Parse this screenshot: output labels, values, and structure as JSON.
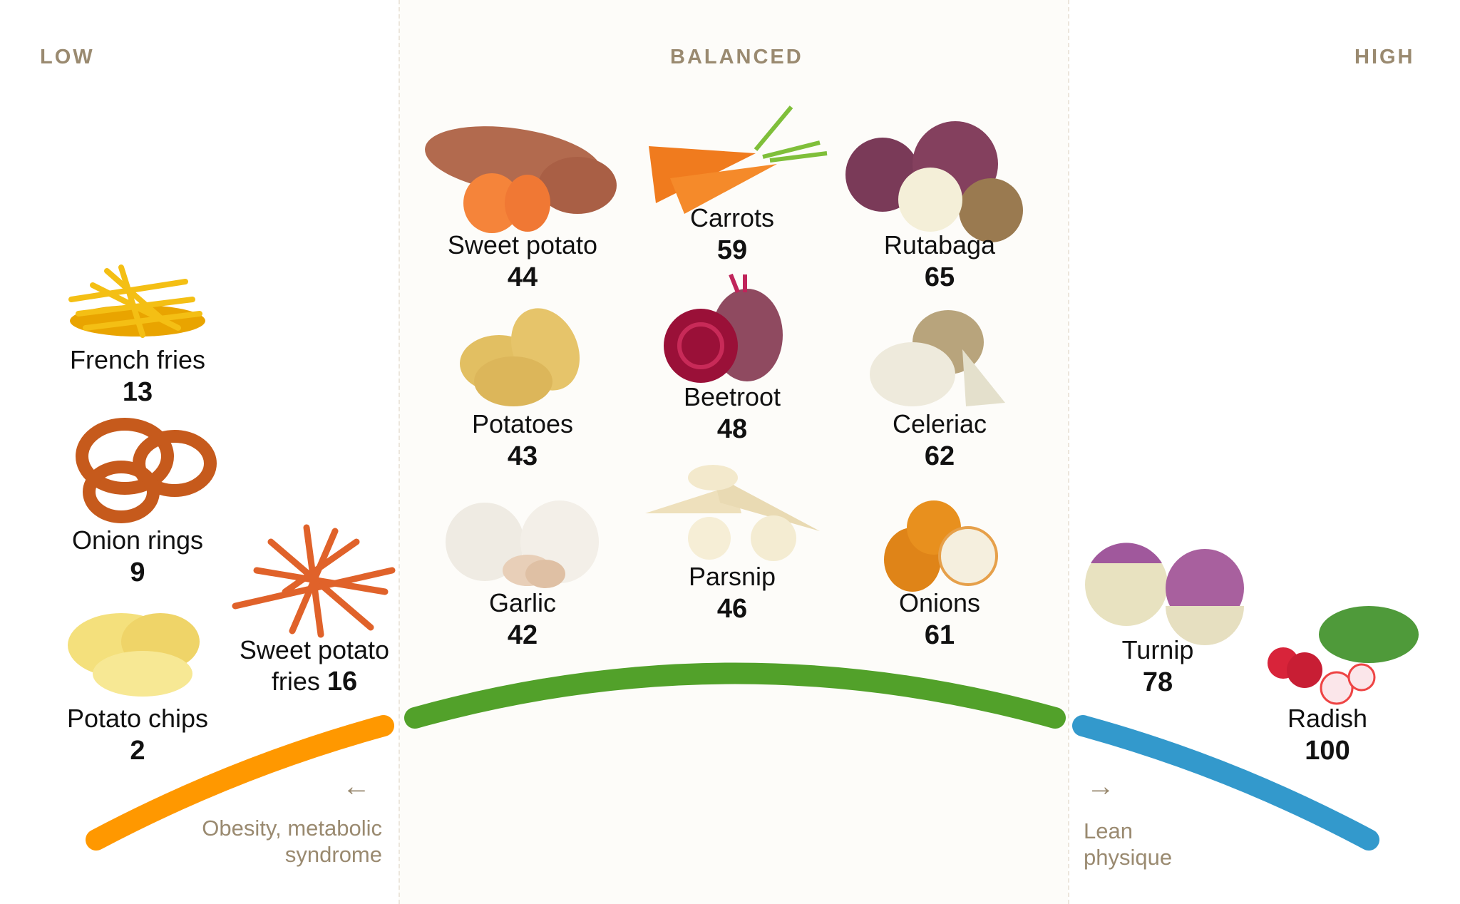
{
  "zones": {
    "low": "LOW",
    "balanced": "BALANCED",
    "high": "HIGH"
  },
  "colors": {
    "low": "#ff9800",
    "balanced": "#52a12a",
    "high": "#3399cc",
    "muted_text": "#9a8a70"
  },
  "items": {
    "french_fries": {
      "label": "French fries",
      "value": "13"
    },
    "onion_rings": {
      "label": "Onion rings",
      "value": "9"
    },
    "potato_chips": {
      "label": "Potato chips",
      "value": "2"
    },
    "sweet_potato_fries": {
      "label": "Sweet potato",
      "label2": "fries",
      "value": "16"
    },
    "sweet_potato": {
      "label": "Sweet potato",
      "value": "44"
    },
    "potatoes": {
      "label": "Potatoes",
      "value": "43"
    },
    "garlic": {
      "label": "Garlic",
      "value": "42"
    },
    "carrots": {
      "label": "Carrots",
      "value": "59"
    },
    "beetroot": {
      "label": "Beetroot",
      "value": "48"
    },
    "parsnip": {
      "label": "Parsnip",
      "value": "46"
    },
    "rutabaga": {
      "label": "Rutabaga",
      "value": "65"
    },
    "celeriac": {
      "label": "Celeriac",
      "value": "62"
    },
    "onions": {
      "label": "Onions",
      "value": "61"
    },
    "turnip": {
      "label": "Turnip",
      "value": "78"
    },
    "radish": {
      "label": "Radish",
      "value": "100"
    }
  },
  "notes": {
    "low": {
      "arrow": "←",
      "line1": "Obesity, metabolic",
      "line2": "syndrome"
    },
    "high": {
      "arrow": "→",
      "line1": "Lean",
      "line2": "physique"
    }
  }
}
